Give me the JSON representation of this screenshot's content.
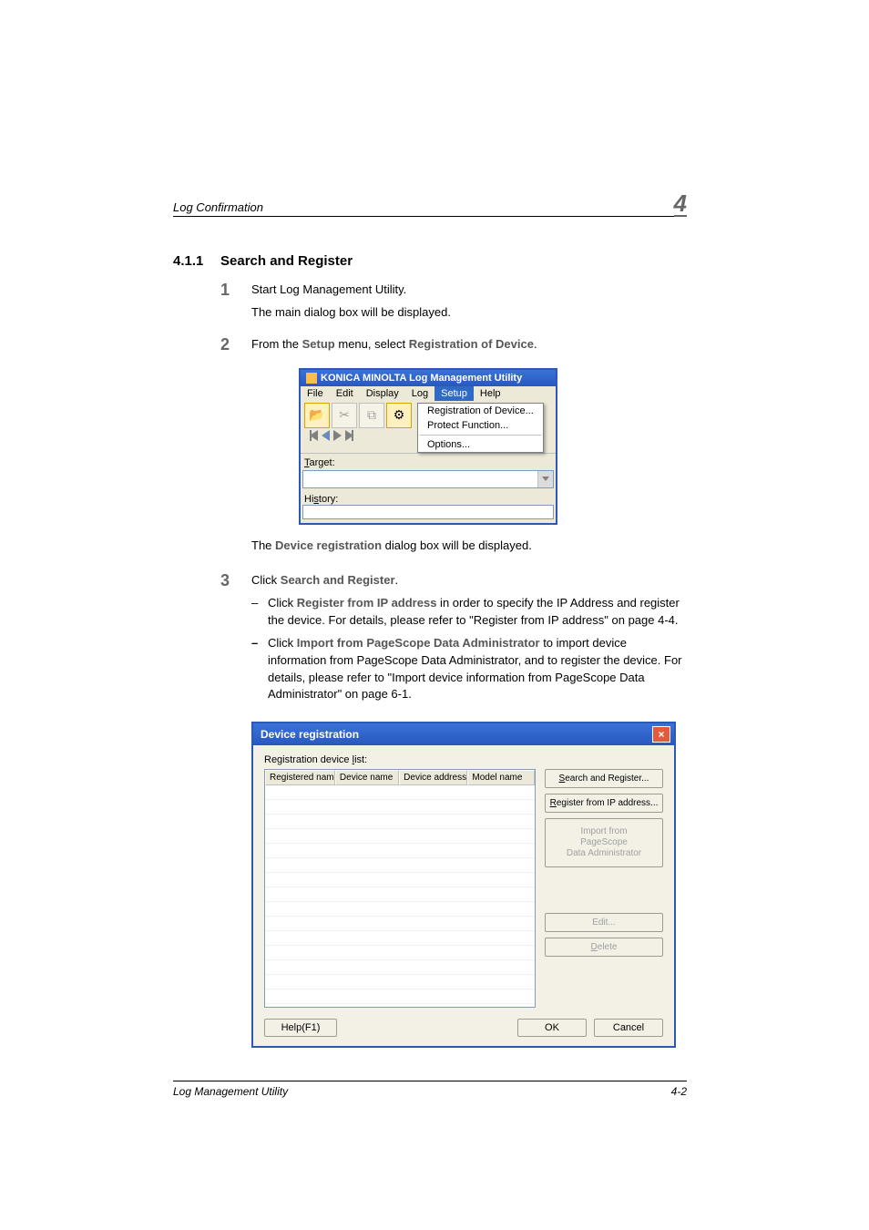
{
  "header": {
    "running_title": "Log Confirmation",
    "chapter_number": "4"
  },
  "section": {
    "number": "4.1.1",
    "title": "Search and Register"
  },
  "steps": {
    "s1": {
      "num": "1",
      "l1": "Start Log Management Utility.",
      "l2": "The main dialog box will be displayed."
    },
    "s2": {
      "num": "2",
      "prefix": "From the ",
      "label1": "Setup",
      "mid": " menu, select ",
      "label2": "Registration of Device",
      "suffix": ".",
      "after_prefix": "The ",
      "after_label": "Device registration",
      "after_suffix": " dialog box will be displayed."
    },
    "s3": {
      "num": "3",
      "prefix": "Click ",
      "label": "Search and Register",
      "suffix": ".",
      "b1_prefix": "Click ",
      "b1_label": "Register from IP address",
      "b1_rest": " in order to specify the IP Address and register the device. For details, please refer to \"Register from IP address\" on page 4-4.",
      "b2_prefix": "Click ",
      "b2_label": "Import from PageScope Data Administrator",
      "b2_rest": " to import device information from PageScope Data Administrator, and to register the device. For details, please refer to \"Import device information from PageScope Data Administrator\" on page 6-1."
    }
  },
  "win1": {
    "title": "KONICA MINOLTA Log Management Utility",
    "menu": {
      "file": "File",
      "edit": "Edit",
      "display": "Display",
      "log": "Log",
      "setup": "Setup",
      "help": "Help"
    },
    "dropdown": {
      "item1": "Registration of Device...",
      "item2": "Protect Function...",
      "item3": "Options..."
    },
    "form": {
      "target": "Target:",
      "history": "History:"
    },
    "colors": {
      "titlebar_top": "#3b72d8",
      "titlebar_bottom": "#2758c0",
      "frame": "#ece9d8",
      "highlight": "#316ac5"
    }
  },
  "dlg": {
    "title": "Device registration",
    "list_label": "Registration device list:",
    "columns": {
      "c1": "Registered name",
      "c2": "Device name",
      "c3": "Device address",
      "c4": "Model name"
    },
    "column_widths": {
      "c1": 80,
      "c2": 72,
      "c3": 78,
      "c4": 76
    },
    "buttons": {
      "search": "Search and Register...",
      "ip": "Register from IP address...",
      "import_l1": "Import from",
      "import_l2": "PageScope",
      "import_l3": "Data Administrator",
      "edit": "Edit...",
      "delete": "Delete"
    },
    "footer": {
      "help": "Help(F1)",
      "ok": "OK",
      "cancel": "Cancel"
    },
    "row_count": 16,
    "colors": {
      "titlebar_top": "#3b72d8",
      "titlebar_bottom": "#2758c0",
      "close_bg": "#e35a3c",
      "dialog_bg": "#f3f1e6",
      "list_border": "#7f9db9",
      "row_border": "#f0f0f0"
    }
  },
  "footer": {
    "left": "Log Management Utility",
    "right": "4-2"
  }
}
